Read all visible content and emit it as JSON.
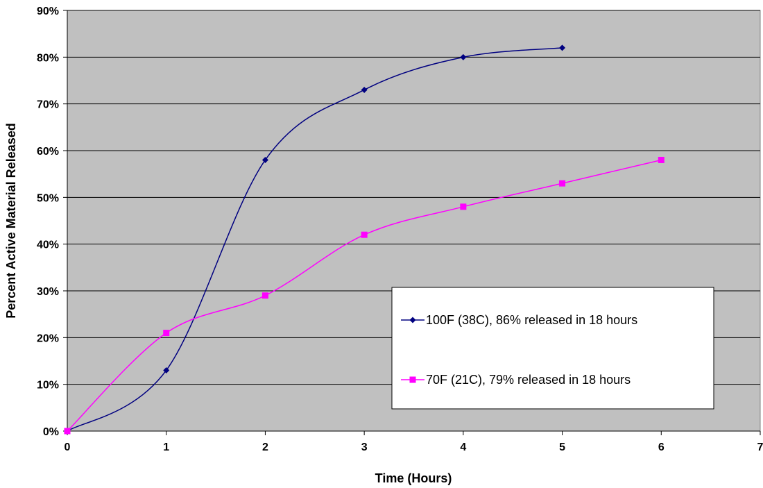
{
  "chart_data": {
    "type": "line",
    "title": "",
    "xlabel": "Time (Hours)",
    "ylabel": "Percent Active Material Released",
    "xlim": [
      0,
      7
    ],
    "ylim": [
      0,
      90
    ],
    "x_ticks": [
      0,
      1,
      2,
      3,
      4,
      5,
      6,
      7
    ],
    "x_tick_labels": [
      "0",
      "1",
      "2",
      "3",
      "4",
      "5",
      "6",
      "7"
    ],
    "y_ticks": [
      0,
      10,
      20,
      30,
      40,
      50,
      60,
      70,
      80,
      90
    ],
    "y_tick_labels": [
      "0%",
      "10%",
      "20%",
      "30%",
      "40%",
      "50%",
      "60%",
      "70%",
      "80%",
      "90%"
    ],
    "grid": "horizontal",
    "smoothed": true,
    "plot_background": "#C0C0C0",
    "legend_position": "lower-right",
    "series": [
      {
        "name": "100F (38C), 86% released in 18 hours",
        "color": "#000080",
        "marker": "diamond",
        "x": [
          0,
          1,
          2,
          3,
          4,
          5
        ],
        "values": [
          0,
          13,
          58,
          73,
          80,
          82
        ]
      },
      {
        "name": "70F (21C), 79% released in 18 hours",
        "color": "#FF00FF",
        "marker": "square",
        "x": [
          0,
          1,
          2,
          3,
          4,
          5,
          6
        ],
        "values": [
          0,
          21,
          29,
          42,
          48,
          53,
          58
        ]
      }
    ]
  }
}
